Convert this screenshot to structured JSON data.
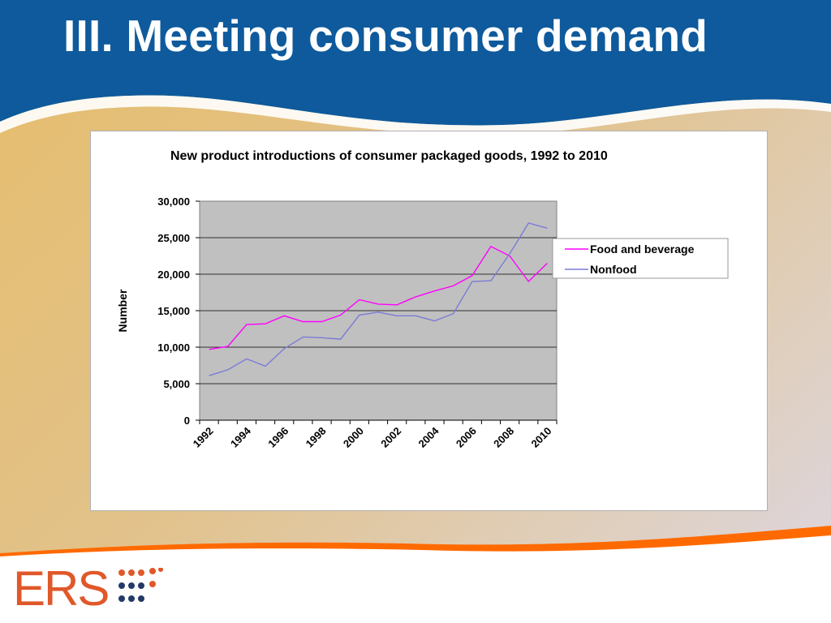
{
  "slide": {
    "title": "III. Meeting consumer demand",
    "logo_text": "ERS",
    "colors": {
      "header_blue": "#0e5a9c",
      "footer_orange": "#ff6a00",
      "logo_orange": "#e0582a",
      "logo_navy": "#233a68"
    }
  },
  "chart_data": {
    "type": "line",
    "title": "New product introductions of consumer packaged goods, 1992 to 2010",
    "xlabel": "",
    "ylabel": "Number",
    "x": [
      1992,
      1993,
      1994,
      1995,
      1996,
      1997,
      1998,
      1999,
      2000,
      2001,
      2002,
      2003,
      2004,
      2005,
      2006,
      2007,
      2008,
      2009,
      2010
    ],
    "x_tick_labels": [
      "1992",
      "1994",
      "1996",
      "1998",
      "2000",
      "2002",
      "2004",
      "2006",
      "2008",
      "2010"
    ],
    "y_tick_labels": [
      "0",
      "5,000",
      "10,000",
      "15,000",
      "20,000",
      "25,000",
      "30,000"
    ],
    "ylim": [
      0,
      30000
    ],
    "grid": "horizontal",
    "plot_background": "#c0c0c0",
    "legend_position": "right",
    "series": [
      {
        "name": "Food and beverage",
        "color": "#ff00ff",
        "values": [
          9700,
          10100,
          13100,
          13200,
          14300,
          13500,
          13500,
          14400,
          16500,
          15900,
          15800,
          16900,
          17700,
          18400,
          19800,
          23800,
          22500,
          19000,
          21500
        ]
      },
      {
        "name": "Nonfood",
        "color": "#7b7bd6",
        "values": [
          6100,
          6900,
          8400,
          7400,
          9800,
          11400,
          11300,
          11100,
          14400,
          14800,
          14300,
          14300,
          13600,
          14600,
          19000,
          19100,
          22800,
          27000,
          26300
        ]
      }
    ]
  }
}
